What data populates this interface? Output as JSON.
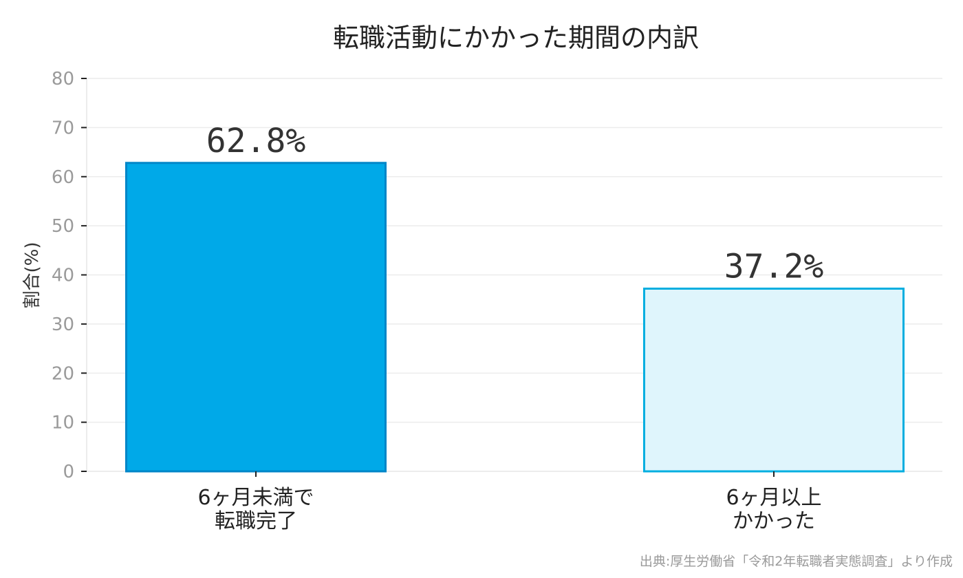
{
  "chart_data": {
    "type": "bar",
    "title": "転職活動にかかった期間の内訳",
    "ylabel": "割合(%)",
    "xlabel": "",
    "ylim": [
      0,
      80
    ],
    "yticks": [
      0,
      10,
      20,
      30,
      40,
      50,
      60,
      70,
      80
    ],
    "categories": [
      [
        "6ヶ月未満で",
        "転職完了"
      ],
      [
        "6ヶ月以上",
        "かかった"
      ]
    ],
    "values": [
      62.8,
      37.2
    ],
    "data_labels": [
      "62.8%",
      "37.2%"
    ],
    "bar_fill_colors": [
      "#00a9e8",
      "#dff5fc"
    ],
    "bar_edge_colors": [
      "#0086c8",
      "#00aee0"
    ],
    "grid": true,
    "source": "出典:厚生労働省「令和2年転職者実態調査」より作成"
  }
}
